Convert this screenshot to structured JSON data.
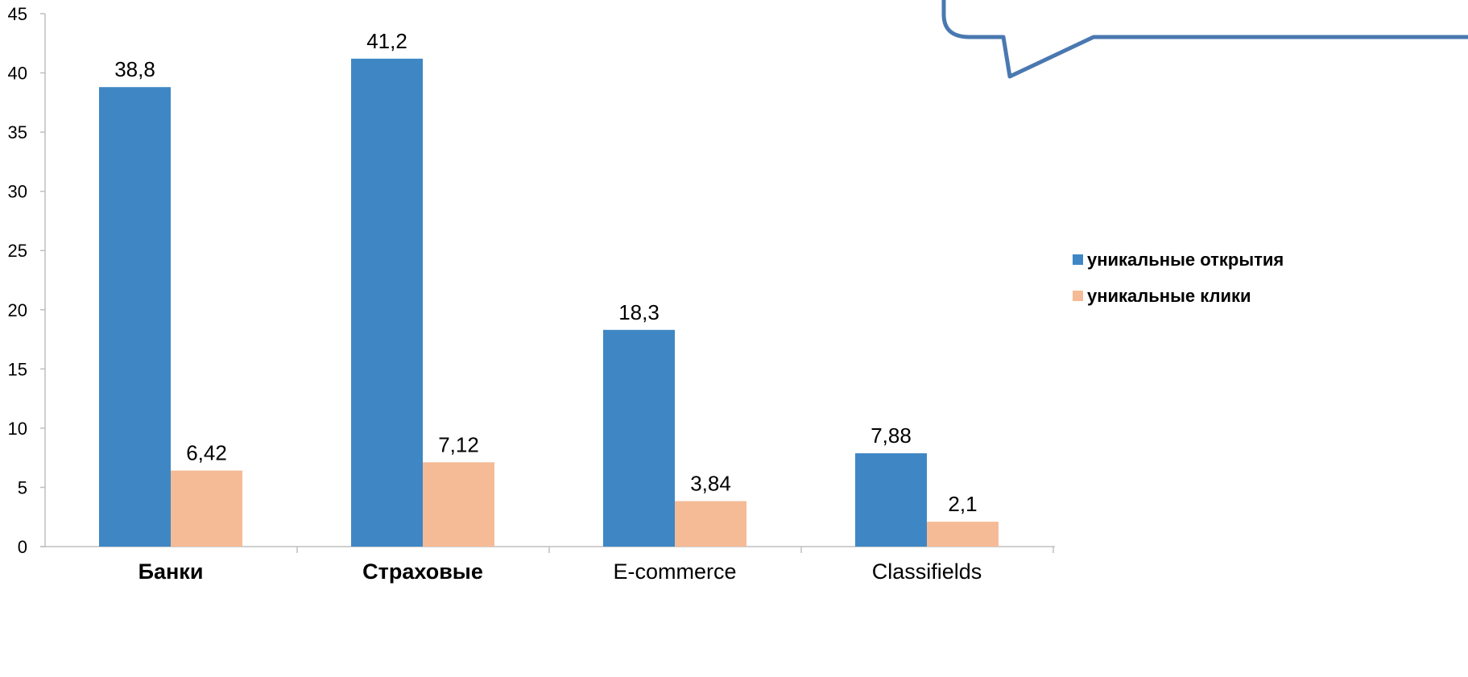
{
  "chart_data": {
    "type": "bar",
    "categories": [
      "Банки",
      "Страховые",
      "E-commerce",
      "Classifields"
    ],
    "categories_bold": [
      true,
      true,
      false,
      false
    ],
    "series": [
      {
        "name": "уникальные открытия",
        "color": "#3E87C4",
        "values": [
          38.8,
          41.2,
          18.3,
          7.88
        ],
        "labels": [
          "38,8",
          "41,2",
          "18,3",
          "7,88"
        ]
      },
      {
        "name": "уникальные клики",
        "color": "#F5BB96",
        "values": [
          6.42,
          7.12,
          3.84,
          2.1
        ],
        "labels": [
          "6,42",
          "7,12",
          "3,84",
          "2,1"
        ]
      }
    ],
    "yticks": [
      0,
      5,
      10,
      15,
      20,
      25,
      30,
      35,
      40,
      45
    ],
    "ylim": [
      0,
      45
    ],
    "grid": false,
    "legend_position": "right",
    "axis_color": "#bfbfbf",
    "callout_border_color": "#4A78B0"
  }
}
